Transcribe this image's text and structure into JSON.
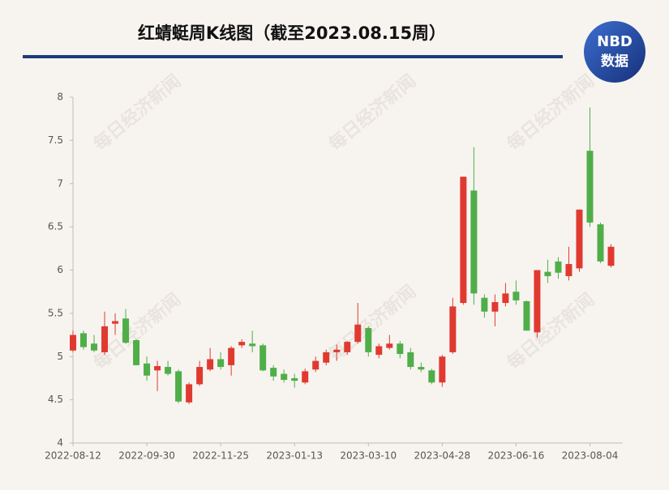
{
  "chart_data": {
    "type": "candlestick",
    "title": "红蜻蜓周K线图（截至2023.08.15周）",
    "logo": {
      "top": "NBD",
      "bottom": "数据"
    },
    "watermark": "每日经济新闻",
    "categories": [
      "2022-08-12",
      null,
      null,
      null,
      null,
      null,
      null,
      "2022-09-30",
      null,
      null,
      null,
      null,
      null,
      null,
      "2022-11-25",
      null,
      null,
      null,
      null,
      null,
      null,
      "2023-01-13",
      null,
      null,
      null,
      null,
      null,
      null,
      "2023-03-10",
      null,
      null,
      null,
      null,
      null,
      null,
      "2023-04-28",
      null,
      null,
      null,
      null,
      null,
      null,
      "2023-06-16",
      null,
      null,
      null,
      null,
      null,
      null,
      "2023-08-04",
      null,
      null
    ],
    "open": [
      5.07,
      5.27,
      5.15,
      5.05,
      5.38,
      5.44,
      5.19,
      4.92,
      4.84,
      4.88,
      4.83,
      4.47,
      4.68,
      4.85,
      4.97,
      4.9,
      5.13,
      5.15,
      5.13,
      4.87,
      4.8,
      4.75,
      4.7,
      4.85,
      4.93,
      5.05,
      5.05,
      5.17,
      5.33,
      5.02,
      5.1,
      5.15,
      5.05,
      4.88,
      4.84,
      4.7,
      5.05,
      5.62,
      6.92,
      5.68,
      5.52,
      5.62,
      5.75,
      5.64,
      5.28,
      5.98,
      6.1,
      5.93,
      6.02,
      7.38,
      6.53,
      6.05
    ],
    "high": [
      5.3,
      5.3,
      5.25,
      5.52,
      5.5,
      5.55,
      5.2,
      5.0,
      4.95,
      4.95,
      4.85,
      4.7,
      4.95,
      5.1,
      5.05,
      5.12,
      5.2,
      5.3,
      5.15,
      4.9,
      4.85,
      4.8,
      4.86,
      5.0,
      5.08,
      5.14,
      5.18,
      5.62,
      5.35,
      5.15,
      5.25,
      5.18,
      5.1,
      4.93,
      4.86,
      5.02,
      5.68,
      7.08,
      7.42,
      5.72,
      5.72,
      5.85,
      5.88,
      5.65,
      6.0,
      6.12,
      6.15,
      6.27,
      6.7,
      7.88,
      6.55,
      6.3
    ],
    "low": [
      5.05,
      5.08,
      5.05,
      5.02,
      5.25,
      5.15,
      4.9,
      4.72,
      4.6,
      4.78,
      4.46,
      4.45,
      4.66,
      4.83,
      4.85,
      4.78,
      5.1,
      5.05,
      4.83,
      4.72,
      4.7,
      4.64,
      4.68,
      4.82,
      4.9,
      4.95,
      5.02,
      5.15,
      5.0,
      4.98,
      5.08,
      4.98,
      4.85,
      4.82,
      4.68,
      4.65,
      5.03,
      5.6,
      5.6,
      5.45,
      5.35,
      5.58,
      5.6,
      5.3,
      5.22,
      5.85,
      5.9,
      5.88,
      5.98,
      6.5,
      6.08,
      6.03
    ],
    "close": [
      5.25,
      5.11,
      5.07,
      5.35,
      5.41,
      5.16,
      4.9,
      4.78,
      4.89,
      4.8,
      4.48,
      4.68,
      4.88,
      4.97,
      4.88,
      5.1,
      5.17,
      5.12,
      4.84,
      4.77,
      4.73,
      4.72,
      4.83,
      4.95,
      5.05,
      5.08,
      5.17,
      5.37,
      5.05,
      5.12,
      5.15,
      5.03,
      4.88,
      4.85,
      4.7,
      5.0,
      5.58,
      7.08,
      5.73,
      5.52,
      5.63,
      5.73,
      5.65,
      5.3,
      6.0,
      5.93,
      5.97,
      6.07,
      6.7,
      6.55,
      6.1,
      6.27
    ],
    "up_color": "#e03a30",
    "down_color": "#4fae48",
    "ylim": [
      4,
      8
    ],
    "yticks": [
      4,
      4.5,
      5,
      5.5,
      6,
      6.5,
      7,
      7.5,
      8
    ]
  }
}
